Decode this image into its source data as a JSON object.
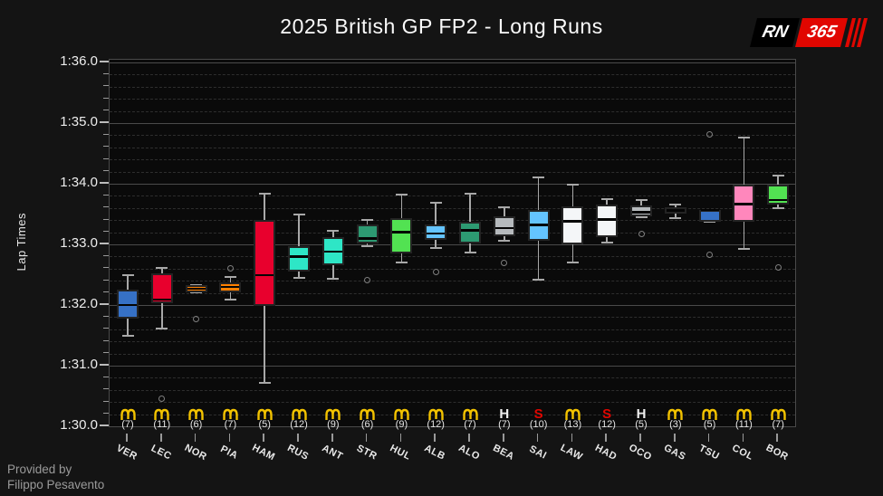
{
  "title": "2025 British GP FP2 - Long Runs",
  "logo": {
    "rn": "RN",
    "num": "365"
  },
  "credit": {
    "line1": "Provided by",
    "line2": "Filippo Pesavento"
  },
  "chart_data": {
    "type": "box",
    "title": "2025 British GP FP2 - Long Runs",
    "ylabel": "Lap Times",
    "ylim": [
      90.0,
      96.045
    ],
    "grid": "major-solid-minor-dashed",
    "minor_step": 0.2,
    "yticks": [
      {
        "value": 96,
        "label": "1:36.0"
      },
      {
        "value": 95,
        "label": "1:35.0"
      },
      {
        "value": 94,
        "label": "1:34.0"
      },
      {
        "value": 93,
        "label": "1:33.0"
      },
      {
        "value": 92,
        "label": "1:32.0"
      },
      {
        "value": 91,
        "label": "1:31.0"
      },
      {
        "value": 90,
        "label": "1:30.0"
      }
    ],
    "tyre_colors": {
      "M": "#f2c200",
      "H": "#f0f0f0",
      "S": "#e10600"
    },
    "drivers": [
      {
        "code": "VER",
        "color": "#3671C6",
        "tyre": "M",
        "laps_label": "(7)",
        "whisker_low": 91.5,
        "q1": 91.77,
        "median": 92.0,
        "q3": 92.25,
        "whisker_high": 92.5,
        "outliers": []
      },
      {
        "code": "LEC",
        "color": "#E8002D",
        "tyre": "M",
        "laps_label": "(11)",
        "whisker_low": 91.61,
        "q1": 92.03,
        "median": 92.09,
        "q3": 92.52,
        "whisker_high": 92.61,
        "outliers": [
          90.45
        ]
      },
      {
        "code": "NOR",
        "color": "#FF8000",
        "tyre": "M",
        "laps_label": "(6)",
        "whisker_low": 92.21,
        "q1": 92.21,
        "median": 92.27,
        "q3": 92.33,
        "whisker_high": 92.33,
        "outliers": [
          91.77
        ]
      },
      {
        "code": "PIA",
        "color": "#FF8000",
        "tyre": "M",
        "laps_label": "(7)",
        "whisker_low": 92.09,
        "q1": 92.21,
        "median": 92.3,
        "q3": 92.37,
        "whisker_high": 92.47,
        "outliers": [
          92.6
        ]
      },
      {
        "code": "HAM",
        "color": "#E8002D",
        "tyre": "M",
        "laps_label": "(5)",
        "whisker_low": 90.72,
        "q1": 91.98,
        "median": 92.49,
        "q3": 93.41,
        "whisker_high": 93.84,
        "outliers": []
      },
      {
        "code": "RUS",
        "color": "#2EE6C6",
        "tyre": "M",
        "laps_label": "(12)",
        "whisker_low": 92.45,
        "q1": 92.55,
        "median": 92.8,
        "q3": 92.97,
        "whisker_high": 93.49,
        "outliers": []
      },
      {
        "code": "ANT",
        "color": "#2EE6C6",
        "tyre": "M",
        "laps_label": "(9)",
        "whisker_low": 92.44,
        "q1": 92.66,
        "median": 92.88,
        "q3": 93.12,
        "whisker_high": 93.22,
        "outliers": []
      },
      {
        "code": "STR",
        "color": "#2D9A72",
        "tyre": "M",
        "laps_label": "(6)",
        "whisker_low": 92.97,
        "q1": 93.01,
        "median": 93.1,
        "q3": 93.33,
        "whisker_high": 93.41,
        "outliers": [
          92.41
        ]
      },
      {
        "code": "HUL",
        "color": "#52E252",
        "tyre": "M",
        "laps_label": "(9)",
        "whisker_low": 92.7,
        "q1": 92.85,
        "median": 93.2,
        "q3": 93.44,
        "whisker_high": 93.82,
        "outliers": []
      },
      {
        "code": "ALB",
        "color": "#64C4FF",
        "tyre": "M",
        "laps_label": "(12)",
        "whisker_low": 92.94,
        "q1": 93.08,
        "median": 93.18,
        "q3": 93.33,
        "whisker_high": 93.69,
        "outliers": [
          92.55
        ]
      },
      {
        "code": "ALO",
        "color": "#2D9A72",
        "tyre": "M",
        "laps_label": "(7)",
        "whisker_low": 92.87,
        "q1": 93.01,
        "median": 93.23,
        "q3": 93.37,
        "whisker_high": 93.83,
        "outliers": []
      },
      {
        "code": "BEA",
        "color": "#B6BABD",
        "tyre": "H",
        "laps_label": "(7)",
        "whisker_low": 93.06,
        "q1": 93.13,
        "median": 93.27,
        "q3": 93.46,
        "whisker_high": 93.61,
        "outliers": [
          92.7
        ]
      },
      {
        "code": "SAI",
        "color": "#64C4FF",
        "tyre": "S",
        "laps_label": "(10)",
        "whisker_low": 92.42,
        "q1": 93.06,
        "median": 93.32,
        "q3": 93.57,
        "whisker_high": 94.1,
        "outliers": []
      },
      {
        "code": "LAW",
        "color": "#F4F6F8",
        "tyre": "M",
        "laps_label": "(13)",
        "whisker_low": 92.7,
        "q1": 93.0,
        "median": 93.38,
        "q3": 93.62,
        "whisker_high": 93.98,
        "outliers": []
      },
      {
        "code": "HAD",
        "color": "#F4F6F8",
        "tyre": "S",
        "laps_label": "(12)",
        "whisker_low": 93.03,
        "q1": 93.12,
        "median": 93.41,
        "q3": 93.66,
        "whisker_high": 93.75,
        "outliers": []
      },
      {
        "code": "OCO",
        "color": "#B6BABD",
        "tyre": "H",
        "laps_label": "(5)",
        "whisker_low": 93.45,
        "q1": 93.47,
        "median": 93.53,
        "q3": 93.64,
        "whisker_high": 93.73,
        "outliers": [
          93.17
        ]
      },
      {
        "code": "GAS",
        "color": "#FF87BC",
        "tyre": "M",
        "laps_label": "(3)",
        "whisker_low": 93.44,
        "q1": 93.51,
        "median": 93.56,
        "q3": 93.61,
        "whisker_high": 93.65,
        "outliers": []
      },
      {
        "code": "TSU",
        "color": "#3671C6",
        "tyre": "M",
        "laps_label": "(5)",
        "whisker_low": 93.38,
        "q1": 93.38,
        "median": 93.57,
        "q3": 93.57,
        "whisker_high": 93.57,
        "outliers": [
          94.82,
          92.83
        ]
      },
      {
        "code": "COL",
        "color": "#FF87BC",
        "tyre": "M",
        "laps_label": "(11)",
        "whisker_low": 92.93,
        "q1": 93.38,
        "median": 93.66,
        "q3": 93.99,
        "whisker_high": 94.76,
        "outliers": []
      },
      {
        "code": "BOR",
        "color": "#52E252",
        "tyre": "M",
        "laps_label": "(7)",
        "whisker_low": 93.6,
        "q1": 93.65,
        "median": 93.73,
        "q3": 93.99,
        "whisker_high": 94.14,
        "outliers": [
          92.62
        ]
      }
    ]
  }
}
